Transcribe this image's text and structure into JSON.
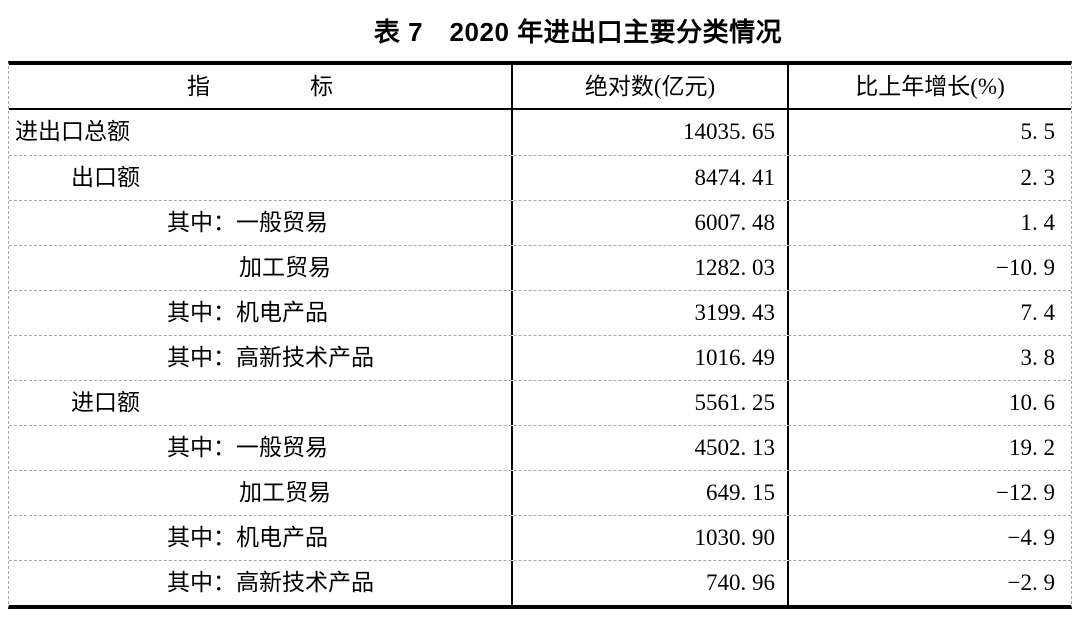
{
  "title": "表 7　2020 年进出口主要分类情况",
  "table": {
    "headers": {
      "indicator": "指标",
      "absolute": "绝对数(亿元)",
      "growth": "比上年增长(%)"
    },
    "rows": [
      {
        "indicator": "进出口总额",
        "indent": 0,
        "absolute": "14035. 65",
        "growth": "5. 5"
      },
      {
        "indicator": "出口额",
        "indent": 1,
        "absolute": "8474. 41",
        "growth": "2. 3"
      },
      {
        "indicator": "其中：一般贸易",
        "indent": 2,
        "absolute": "6007. 48",
        "growth": "1. 4"
      },
      {
        "indicator": "加工贸易",
        "indent": 3,
        "absolute": "1282. 03",
        "growth": "−10. 9"
      },
      {
        "indicator": "其中：机电产品",
        "indent": 2,
        "absolute": "3199. 43",
        "growth": "7. 4"
      },
      {
        "indicator": "其中：高新技术产品",
        "indent": 2,
        "absolute": "1016. 49",
        "growth": "3. 8"
      },
      {
        "indicator": "进口额",
        "indent": 1,
        "absolute": "5561. 25",
        "growth": "10. 6"
      },
      {
        "indicator": "其中：一般贸易",
        "indent": 2,
        "absolute": "4502. 13",
        "growth": "19. 2"
      },
      {
        "indicator": "加工贸易",
        "indent": 3,
        "absolute": "649. 15",
        "growth": "−12. 9"
      },
      {
        "indicator": "其中：机电产品",
        "indent": 2,
        "absolute": "1030. 90",
        "growth": "−4. 9"
      },
      {
        "indicator": "其中：高新技术产品",
        "indent": 2,
        "absolute": "740. 96",
        "growth": "−2. 9"
      }
    ],
    "colors": {
      "text": "#000000",
      "heavy_border": "#000000",
      "gridline_dashed": "#a8a8a8",
      "background": "#ffffff"
    }
  },
  "chart_data": {
    "type": "table",
    "title": "表7 2020年进出口主要分类情况",
    "columns": [
      "指标",
      "绝对数(亿元)",
      "比上年增长(%)"
    ],
    "categories": [
      "进出口总额",
      "出口额",
      "其中：一般贸易",
      "加工贸易",
      "其中：机电产品",
      "其中：高新技术产品",
      "进口额",
      "其中：一般贸易",
      "加工贸易",
      "其中：机电产品",
      "其中：高新技术产品"
    ],
    "series": [
      {
        "name": "绝对数(亿元)",
        "values": [
          14035.65,
          8474.41,
          6007.48,
          1282.03,
          3199.43,
          1016.49,
          5561.25,
          4502.13,
          649.15,
          1030.9,
          740.96
        ]
      },
      {
        "name": "比上年增长(%)",
        "values": [
          5.5,
          2.3,
          1.4,
          -10.9,
          7.4,
          3.8,
          10.6,
          19.2,
          -12.9,
          -4.9,
          -2.9
        ]
      }
    ]
  }
}
